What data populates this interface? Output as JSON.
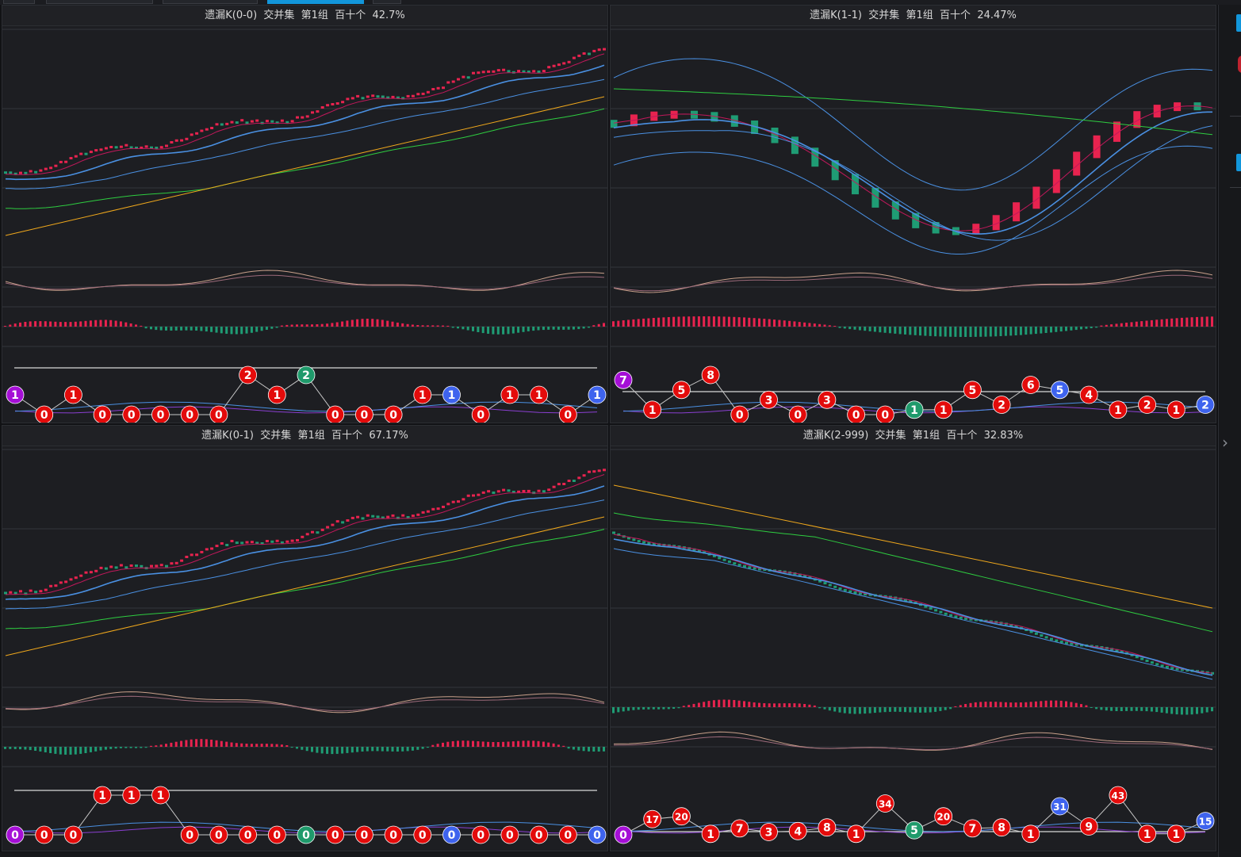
{
  "panels": [
    {
      "id": "p00",
      "title": "遗漏K(0-0)  交并集  第1组  百十个  42.7%",
      "trend": "up",
      "circles": [
        {
          "v": "1",
          "c": "purple"
        },
        {
          "v": "0",
          "c": "red"
        },
        {
          "v": "1",
          "c": "red"
        },
        {
          "v": "0",
          "c": "red"
        },
        {
          "v": "0",
          "c": "red"
        },
        {
          "v": "0",
          "c": "red"
        },
        {
          "v": "0",
          "c": "red"
        },
        {
          "v": "0",
          "c": "red"
        },
        {
          "v": "2",
          "c": "red"
        },
        {
          "v": "1",
          "c": "red"
        },
        {
          "v": "2",
          "c": "green"
        },
        {
          "v": "0",
          "c": "red"
        },
        {
          "v": "0",
          "c": "red"
        },
        {
          "v": "0",
          "c": "red"
        },
        {
          "v": "1",
          "c": "red"
        },
        {
          "v": "1",
          "c": "blue"
        },
        {
          "v": "0",
          "c": "red"
        },
        {
          "v": "1",
          "c": "red"
        },
        {
          "v": "1",
          "c": "red"
        },
        {
          "v": "0",
          "c": "red"
        },
        {
          "v": "1",
          "c": "blue"
        }
      ]
    },
    {
      "id": "p11",
      "title": "遗漏K(1-1)  交并集  第1组  百十个  24.47%",
      "trend": "wave",
      "circles": [
        {
          "v": "7",
          "c": "purple"
        },
        {
          "v": "1",
          "c": "red"
        },
        {
          "v": "5",
          "c": "red"
        },
        {
          "v": "8",
          "c": "red"
        },
        {
          "v": "0",
          "c": "red"
        },
        {
          "v": "3",
          "c": "red"
        },
        {
          "v": "0",
          "c": "red"
        },
        {
          "v": "3",
          "c": "red"
        },
        {
          "v": "0",
          "c": "red"
        },
        {
          "v": "0",
          "c": "red"
        },
        {
          "v": "1",
          "c": "green"
        },
        {
          "v": "1",
          "c": "red"
        },
        {
          "v": "5",
          "c": "red"
        },
        {
          "v": "2",
          "c": "red"
        },
        {
          "v": "6",
          "c": "red"
        },
        {
          "v": "5",
          "c": "blue"
        },
        {
          "v": "4",
          "c": "red"
        },
        {
          "v": "1",
          "c": "red"
        },
        {
          "v": "2",
          "c": "red"
        },
        {
          "v": "1",
          "c": "red"
        },
        {
          "v": "2",
          "c": "blue"
        }
      ]
    },
    {
      "id": "p01",
      "title": "遗漏K(0-1)  交并集  第1组  百十个  67.17%",
      "trend": "up",
      "circles": [
        {
          "v": "0",
          "c": "purple"
        },
        {
          "v": "0",
          "c": "red"
        },
        {
          "v": "0",
          "c": "red"
        },
        {
          "v": "1",
          "c": "red"
        },
        {
          "v": "1",
          "c": "red"
        },
        {
          "v": "1",
          "c": "red"
        },
        {
          "v": "0",
          "c": "red"
        },
        {
          "v": "0",
          "c": "red"
        },
        {
          "v": "0",
          "c": "red"
        },
        {
          "v": "0",
          "c": "red"
        },
        {
          "v": "0",
          "c": "green"
        },
        {
          "v": "0",
          "c": "red"
        },
        {
          "v": "0",
          "c": "red"
        },
        {
          "v": "0",
          "c": "red"
        },
        {
          "v": "0",
          "c": "red"
        },
        {
          "v": "0",
          "c": "blue"
        },
        {
          "v": "0",
          "c": "red"
        },
        {
          "v": "0",
          "c": "red"
        },
        {
          "v": "0",
          "c": "red"
        },
        {
          "v": "0",
          "c": "red"
        },
        {
          "v": "0",
          "c": "blue"
        }
      ]
    },
    {
      "id": "p2999",
      "title": "遗漏K(2-999)  交并集  第1组  百十个  32.83%",
      "trend": "down",
      "circles": [
        {
          "v": "0",
          "c": "purple"
        },
        {
          "v": "17",
          "c": "red"
        },
        {
          "v": "20",
          "c": "red"
        },
        {
          "v": "1",
          "c": "red"
        },
        {
          "v": "7",
          "c": "red"
        },
        {
          "v": "3",
          "c": "red"
        },
        {
          "v": "4",
          "c": "red"
        },
        {
          "v": "8",
          "c": "red"
        },
        {
          "v": "1",
          "c": "red"
        },
        {
          "v": "34",
          "c": "red"
        },
        {
          "v": "5",
          "c": "green"
        },
        {
          "v": "20",
          "c": "red"
        },
        {
          "v": "7",
          "c": "red"
        },
        {
          "v": "8",
          "c": "red"
        },
        {
          "v": "1",
          "c": "red"
        },
        {
          "v": "31",
          "c": "blue"
        },
        {
          "v": "9",
          "c": "red"
        },
        {
          "v": "43",
          "c": "red"
        },
        {
          "v": "1",
          "c": "red"
        },
        {
          "v": "1",
          "c": "red"
        },
        {
          "v": "15",
          "c": "blue"
        }
      ]
    }
  ],
  "colors": {
    "up": "#e8234f",
    "down": "#1f9c74",
    "purple": "#a50fd6",
    "red": "#e30b0b",
    "green": "#1f9a6b",
    "blue": "#3e63ee",
    "ma1": "#4a90e2",
    "ma2": "#c2185b",
    "ma3": "#2ecc40",
    "ma4": "#f0a81c",
    "kline": "#c8a08a"
  },
  "chart_data": [
    {
      "type": "line",
      "title": "遗漏K(0-0)  交并集  第1组  百十个  42.7%",
      "series": [
        {
          "values": [
            1,
            0,
            1,
            0,
            0,
            0,
            0,
            0,
            2,
            1,
            2,
            0,
            0,
            0,
            1,
            1,
            0,
            1,
            1,
            0,
            1
          ]
        }
      ]
    },
    {
      "type": "line",
      "title": "遗漏K(1-1)  交并集  第1组  百十个  24.47%",
      "series": [
        {
          "values": [
            7,
            1,
            5,
            8,
            0,
            3,
            0,
            3,
            0,
            0,
            1,
            1,
            5,
            2,
            6,
            5,
            4,
            1,
            2,
            1,
            2
          ]
        }
      ]
    },
    {
      "type": "line",
      "title": "遗漏K(0-1)  交并集  第1组  百十个  67.17%",
      "series": [
        {
          "values": [
            0,
            0,
            0,
            1,
            1,
            1,
            0,
            0,
            0,
            0,
            0,
            0,
            0,
            0,
            0,
            0,
            0,
            0,
            0,
            0,
            0
          ]
        }
      ]
    },
    {
      "type": "line",
      "title": "遗漏K(2-999)  交并集  第1组  百十个  32.83%",
      "series": [
        {
          "values": [
            0,
            17,
            20,
            1,
            7,
            3,
            4,
            8,
            1,
            34,
            5,
            20,
            7,
            8,
            1,
            31,
            9,
            43,
            1,
            1,
            15
          ]
        }
      ]
    }
  ]
}
